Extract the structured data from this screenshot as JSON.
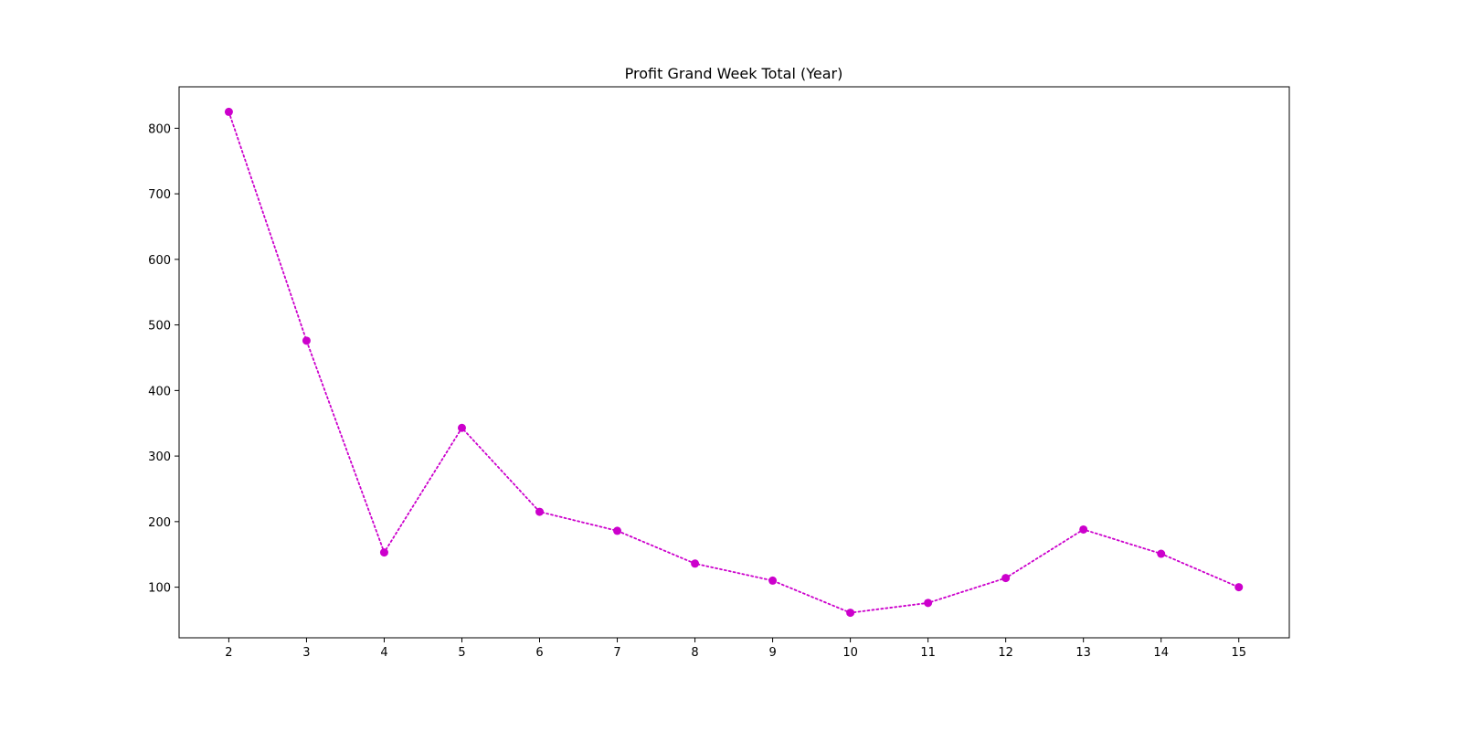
{
  "chart_data": {
    "type": "line",
    "title": "Profit Grand Week Total (Year)",
    "xlabel": "",
    "ylabel": "",
    "x": [
      2,
      3,
      4,
      5,
      6,
      7,
      8,
      9,
      10,
      11,
      12,
      13,
      14,
      15
    ],
    "series": [
      {
        "values": [
          825,
          476,
          153,
          343,
          215,
          186,
          136,
          110,
          61,
          76,
          114,
          188,
          151,
          100
        ],
        "color": "#cc00cc",
        "line_style": "dotted",
        "marker": "circle"
      }
    ],
    "xticks": [
      2,
      3,
      4,
      5,
      6,
      7,
      8,
      9,
      10,
      11,
      12,
      13,
      14,
      15
    ],
    "yticks": [
      100,
      200,
      300,
      400,
      500,
      600,
      700,
      800
    ],
    "xlim": [
      1.36,
      15.65
    ],
    "ylim": [
      22.8,
      863.2
    ],
    "grid": false,
    "legend": "none"
  }
}
